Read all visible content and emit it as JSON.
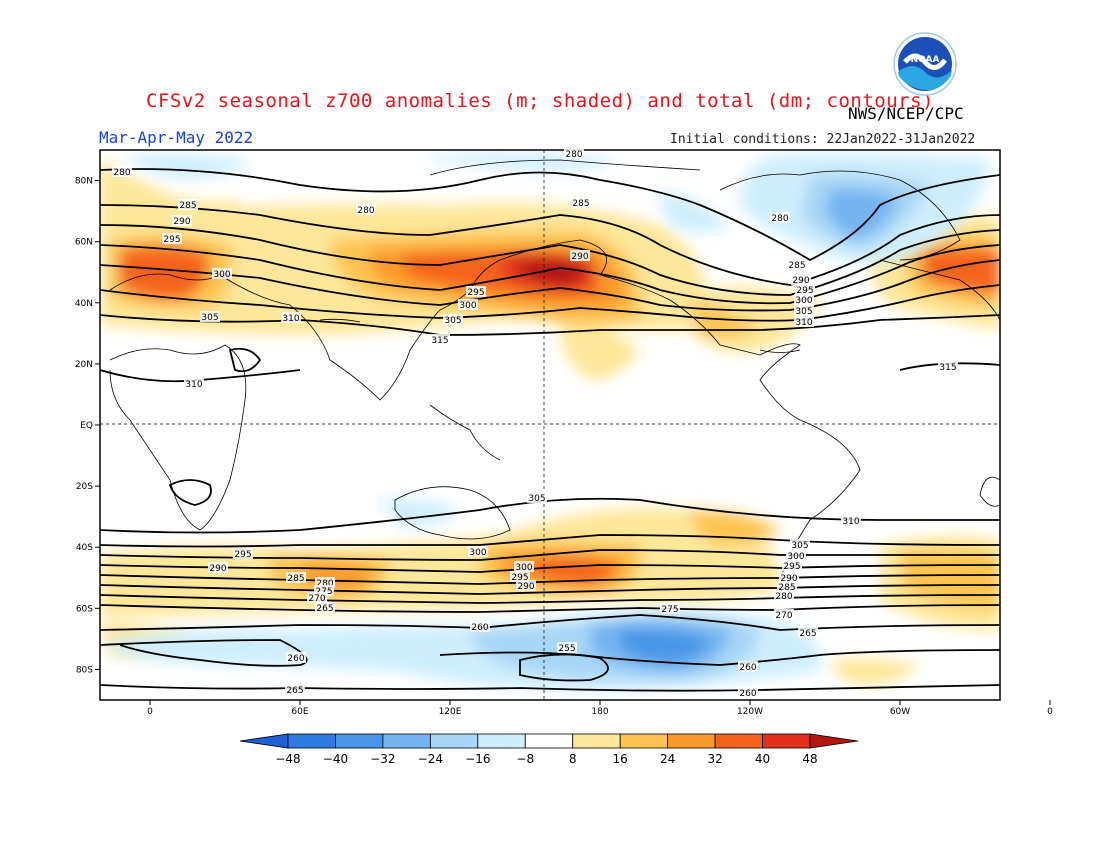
{
  "header": {
    "title": "CFSv2 seasonal z700 anomalies (m; shaded) and total (dm; contours)",
    "agency": "NWS/NCEP/CPC",
    "season": "Mar-Apr-May 2022",
    "initial_conditions": "Initial conditions: 22Jan2022-31Jan2022",
    "logo_text": "NOAA"
  },
  "map": {
    "lat_labels": [
      "80N",
      "60N",
      "40N",
      "20N",
      "EQ",
      "20S",
      "40S",
      "60S",
      "80S"
    ],
    "lon_labels": [
      "0",
      "60E",
      "120E",
      "180",
      "120W",
      "60W",
      "0"
    ],
    "contour_labels": [
      "280",
      "285",
      "290",
      "295",
      "300",
      "305",
      "310",
      "315",
      "310",
      "305",
      "300",
      "295",
      "290",
      "285",
      "280",
      "275",
      "270",
      "265",
      "260",
      "255"
    ]
  },
  "colorbar": {
    "ticks": [
      "-48",
      "-40",
      "-32",
      "-24",
      "-16",
      "-8",
      "8",
      "16",
      "24",
      "32",
      "40",
      "48"
    ],
    "colors": [
      "#1e5fd6",
      "#2f7ae0",
      "#4a95e8",
      "#75b4f0",
      "#a7d6f7",
      "#cfeefc",
      "#ffffff",
      "#fde79a",
      "#fdc451",
      "#fb9a2a",
      "#f4631c",
      "#e0301b",
      "#b31712"
    ]
  }
}
